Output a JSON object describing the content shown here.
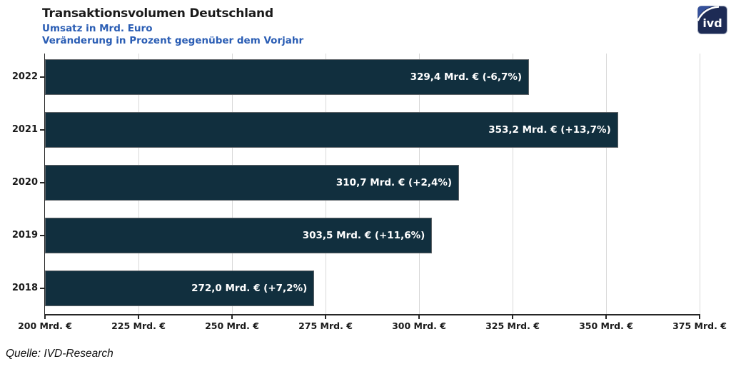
{
  "header": {
    "title": "Transaktionsvolumen Deutschland",
    "subtitle1": "Umsatz in Mrd. Euro",
    "subtitle2": "Veränderung in Prozent gegenüber dem Vorjahr"
  },
  "logo": {
    "text": "ivd"
  },
  "source": "Quelle: IVD-Research",
  "colors": {
    "bar": "#112f3e",
    "bar_border": "#5f6468",
    "subtitle_blue": "#2a5db4",
    "axis": "#262626",
    "gridline": "#d9d9d9",
    "bar_label_text": "#ffffff",
    "logo_bg": "#1d2b55"
  },
  "chart_data": {
    "type": "bar",
    "orientation": "horizontal",
    "title": "Transaktionsvolumen Deutschland",
    "subtitle": "Umsatz in Mrd. Euro — Veränderung in Prozent gegenüber dem Vorjahr",
    "categories": [
      "2022",
      "2021",
      "2020",
      "2019",
      "2018"
    ],
    "values": [
      329.4,
      353.2,
      310.7,
      303.5,
      272.0
    ],
    "changes_pct": [
      -6.7,
      13.7,
      2.4,
      11.6,
      7.2
    ],
    "labels": [
      "329,4 Mrd. € (-6,7%)",
      "353,2 Mrd. € (+13,7%)",
      "310,7 Mrd. € (+2,4%)",
      "303,5 Mrd. € (+11,6%)",
      "272,0 Mrd. € (+7,2%)"
    ],
    "xlabel": "",
    "ylabel": "",
    "xlim": [
      200,
      375
    ],
    "x_ticks": [
      200,
      225,
      250,
      275,
      300,
      325,
      350,
      375
    ],
    "x_tick_suffix": " Mrd. €",
    "grid": true,
    "legend": false
  }
}
